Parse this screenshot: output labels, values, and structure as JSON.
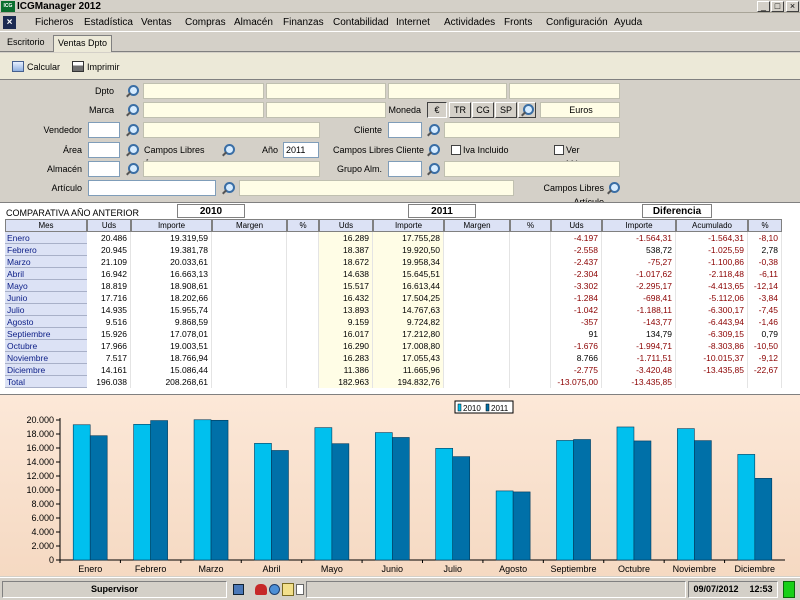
{
  "window": {
    "title": "ICGManager 2012",
    "logo_text": "ICG",
    "controls": [
      "_",
      "□",
      "×"
    ]
  },
  "menu": [
    "Ficheros",
    "Estadística",
    "Ventas",
    "Compras",
    "Almacén",
    "Finanzas",
    "Contabilidad",
    "Internet",
    "Actividades",
    "Fronts",
    "Configuración",
    "Ayuda"
  ],
  "menu_close": "×",
  "tabs": [
    {
      "label": "Escritorio",
      "active": false
    },
    {
      "label": "Ventas Dpto",
      "active": true
    }
  ],
  "toolbar": {
    "calcular": "Calcular",
    "imprimir": "Imprimir"
  },
  "filters": {
    "dpto": "Dpto",
    "marca": "Marca",
    "moneda": "Moneda",
    "currency_buttons": [
      "€",
      "TR",
      "CG",
      "SP"
    ],
    "currency_value": "Euros",
    "vendedor": "Vendedor",
    "cliente": "Cliente",
    "area": "Área",
    "campos_libres_area": "Campos Libres Área",
    "anio": "Año",
    "anio_value": "2011",
    "campos_libres_cliente": "Campos Libres Cliente",
    "iva_incluido": "Iva Incluido",
    "ver_margenes": "Ver Márgenes",
    "almacen": "Almacén",
    "grupo_alm": "Grupo Alm.",
    "articulo": "Artículo",
    "campos_libres_articulo": "Campos Libres Artículo"
  },
  "table": {
    "comparativa_label": "COMPARATIVA AÑO ANTERIOR",
    "group_2010": "2010",
    "group_2011": "2011",
    "group_diff": "Diferencia",
    "headers": [
      "Mes",
      "Uds",
      "Importe",
      "Margen",
      "%",
      "Uds",
      "Importe",
      "Margen",
      "%",
      "Uds",
      "Importe",
      "Acumulado",
      "%"
    ],
    "rows": [
      {
        "mes": "Enero",
        "uds10": "20.486",
        "imp10": "19.319,59",
        "uds11": "16.289",
        "imp11": "17.755,28",
        "duds": "-4.197",
        "dimp": "-1.564,31",
        "acum": "-1.564,31",
        "pct": "-8,10"
      },
      {
        "mes": "Febrero",
        "uds10": "20.945",
        "imp10": "19.381,78",
        "uds11": "18.387",
        "imp11": "19.920,50",
        "duds": "-2.558",
        "dimp": "538,72",
        "acum": "-1.025,59",
        "pct": "2,78"
      },
      {
        "mes": "Marzo",
        "uds10": "21.109",
        "imp10": "20.033,61",
        "uds11": "18.672",
        "imp11": "19.958,34",
        "duds": "-2.437",
        "dimp": "-75,27",
        "acum": "-1.100,86",
        "pct": "-0,38"
      },
      {
        "mes": "Abril",
        "uds10": "16.942",
        "imp10": "16.663,13",
        "uds11": "14.638",
        "imp11": "15.645,51",
        "duds": "-2.304",
        "dimp": "-1.017,62",
        "acum": "-2.118,48",
        "pct": "-6,11"
      },
      {
        "mes": "Mayo",
        "uds10": "18.819",
        "imp10": "18.908,61",
        "uds11": "15.517",
        "imp11": "16.613,44",
        "duds": "-3.302",
        "dimp": "-2.295,17",
        "acum": "-4.413,65",
        "pct": "-12,14"
      },
      {
        "mes": "Junio",
        "uds10": "17.716",
        "imp10": "18.202,66",
        "uds11": "16.432",
        "imp11": "17.504,25",
        "duds": "-1.284",
        "dimp": "-698,41",
        "acum": "-5.112,06",
        "pct": "-3,84"
      },
      {
        "mes": "Julio",
        "uds10": "14.935",
        "imp10": "15.955,74",
        "uds11": "13.893",
        "imp11": "14.767,63",
        "duds": "-1.042",
        "dimp": "-1.188,11",
        "acum": "-6.300,17",
        "pct": "-7,45"
      },
      {
        "mes": "Agosto",
        "uds10": "9.516",
        "imp10": "9.868,59",
        "uds11": "9.159",
        "imp11": "9.724,82",
        "duds": "-357",
        "dimp": "-143,77",
        "acum": "-6.443,94",
        "pct": "-1,46"
      },
      {
        "mes": "Septiembre",
        "uds10": "15.926",
        "imp10": "17.078,01",
        "uds11": "16.017",
        "imp11": "17.212,80",
        "duds": "91",
        "dimp": "134,79",
        "acum": "-6.309,15",
        "pct": "0,79"
      },
      {
        "mes": "Octubre",
        "uds10": "17.966",
        "imp10": "19.003,51",
        "uds11": "16.290",
        "imp11": "17.008,80",
        "duds": "-1.676",
        "dimp": "-1.994,71",
        "acum": "-8.303,86",
        "pct": "-10,50"
      },
      {
        "mes": "Noviembre",
        "uds10": "7.517",
        "imp10": "18.766,94",
        "uds11": "16.283",
        "imp11": "17.055,43",
        "duds": "8.766",
        "dimp": "-1.711,51",
        "acum": "-10.015,37",
        "pct": "-9,12"
      },
      {
        "mes": "Diciembre",
        "uds10": "14.161",
        "imp10": "15.086,44",
        "uds11": "11.386",
        "imp11": "11.665,96",
        "duds": "-2.775",
        "dimp": "-3.420,48",
        "acum": "-13.435,85",
        "pct": "-22,67"
      }
    ],
    "total": {
      "mes": "Total",
      "uds10": "196.038",
      "imp10": "208.268,61",
      "uds11": "182.963",
      "imp11": "194.832,76",
      "duds": "-13.075,00",
      "dimp": "-13.435,85"
    }
  },
  "chart_data": {
    "type": "bar",
    "categories": [
      "Enero",
      "Febrero",
      "Marzo",
      "Abril",
      "Mayo",
      "Junio",
      "Julio",
      "Agosto",
      "Septiembre",
      "Octubre",
      "Noviembre",
      "Diciembre"
    ],
    "series": [
      {
        "name": "2010",
        "values": [
          19319.59,
          19381.78,
          20033.61,
          16663.13,
          18908.61,
          18202.66,
          15955.74,
          9868.59,
          17078.01,
          19003.51,
          18766.94,
          15086.44
        ],
        "color": "#00c0ee"
      },
      {
        "name": "2011",
        "values": [
          17755.28,
          19920.5,
          19958.34,
          15645.51,
          16613.44,
          17504.25,
          14767.63,
          9724.82,
          17212.8,
          17008.8,
          17055.43,
          11665.96
        ],
        "color": "#0070a8"
      }
    ],
    "ylim": [
      0,
      20000
    ],
    "yticks": [
      "0",
      "2.000",
      "4.000",
      "6.000",
      "8.000",
      "10.000",
      "12.000",
      "14.000",
      "16.000",
      "18.000",
      "20.000"
    ],
    "legend_position": "top-center",
    "grid": false
  },
  "statusbar": {
    "user": "Supervisor",
    "date": "09/07/2012",
    "time": "12:53"
  }
}
